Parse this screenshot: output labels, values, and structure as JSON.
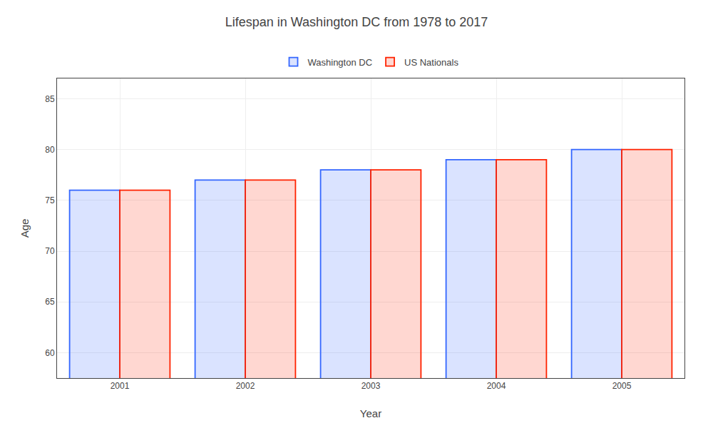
{
  "chart_data": {
    "type": "bar",
    "title": "Lifespan in Washington DC from 1978 to 2017",
    "xlabel": "Year",
    "ylabel": "Age",
    "categories": [
      "2001",
      "2002",
      "2003",
      "2004",
      "2005"
    ],
    "series": [
      {
        "name": "Washington DC",
        "color": "#3366ff",
        "values": [
          76,
          77,
          78,
          79,
          80
        ]
      },
      {
        "name": "US Nationals",
        "color": "#ff2200",
        "values": [
          76,
          77,
          78,
          79,
          80
        ]
      }
    ],
    "ylim": [
      57.5,
      87
    ],
    "yticks": [
      60,
      65,
      70,
      75,
      80,
      85
    ],
    "grid": true,
    "legend": "top"
  }
}
